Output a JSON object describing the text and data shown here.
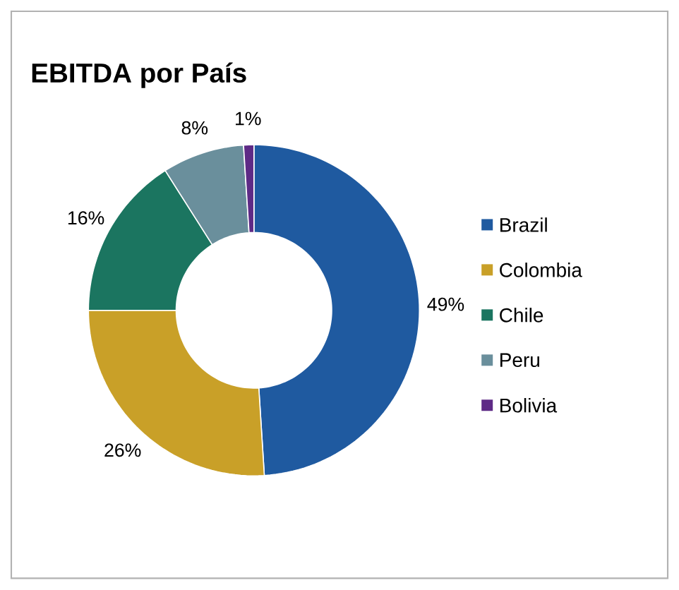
{
  "chart_data": {
    "type": "donut",
    "title": "EBITDA por País",
    "categories": [
      "Brazil",
      "Colombia",
      "Chile",
      "Peru",
      "Bolivia"
    ],
    "values": [
      49,
      26,
      16,
      8,
      1
    ],
    "value_labels": [
      "49%",
      "26%",
      "16%",
      "8%",
      "1%"
    ],
    "colors": [
      "#1f5aa0",
      "#c9a028",
      "#1b7560",
      "#6a8f9c",
      "#5e2a86"
    ],
    "legend": "right"
  }
}
